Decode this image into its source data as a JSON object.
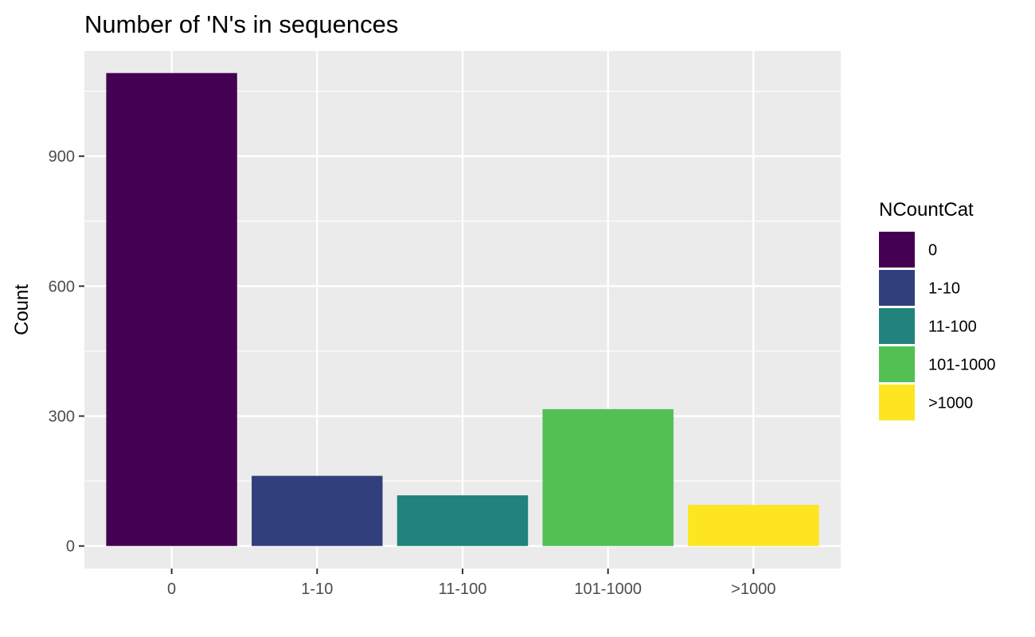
{
  "chart_data": {
    "type": "bar",
    "title": "Number of 'N's in sequences",
    "xlabel": "",
    "ylabel": "Count",
    "categories": [
      "0",
      "1-10",
      "11-100",
      "101-1000",
      ">1000"
    ],
    "values": [
      1092,
      162,
      117,
      316,
      95
    ],
    "colors": [
      "#440154",
      "#31407c",
      "#21837b",
      "#52c052",
      "#fde621"
    ],
    "ylim": [
      -52,
      1143
    ],
    "yticks": [
      0,
      300,
      600,
      900
    ],
    "grid": true,
    "legend": {
      "title": "NCountCat",
      "position": "right",
      "entries": [
        "0",
        "1-10",
        "11-100",
        "101-1000",
        ">1000"
      ]
    }
  }
}
